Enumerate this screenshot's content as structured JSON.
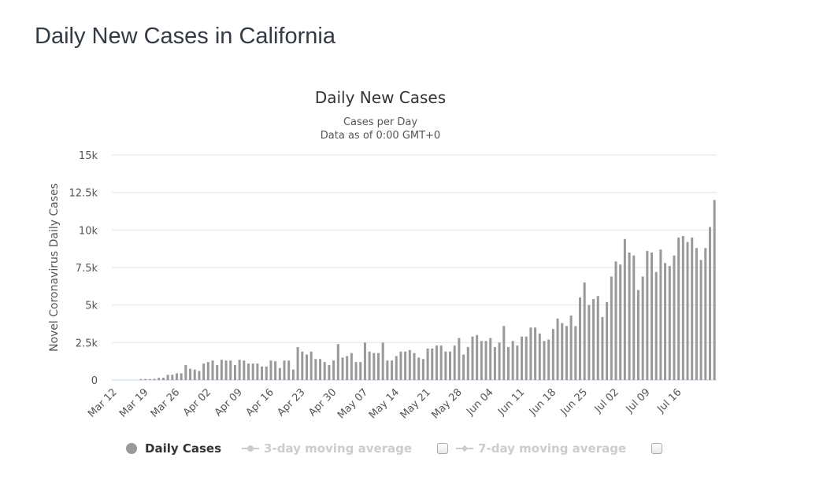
{
  "page": {
    "title": "Daily New Cases in California"
  },
  "chart_data": {
    "type": "bar",
    "title": "Daily New Cases",
    "subtitle_lines": [
      "Cases per Day",
      "Data as of 0:00 GMT+0"
    ],
    "xlabel": "",
    "ylabel": "Novel Coronavirus Daily Cases",
    "ylim": [
      0,
      15000
    ],
    "yticks": [
      0,
      2500,
      5000,
      7500,
      10000,
      12500,
      15000
    ],
    "ytick_labels": [
      "0",
      "2.5k",
      "5k",
      "7.5k",
      "10k",
      "12.5k",
      "15k"
    ],
    "xtick_labels": [
      "Mar 12",
      "Mar 19",
      "Mar 26",
      "Apr 02",
      "Apr 09",
      "Apr 16",
      "Apr 23",
      "Apr 30",
      "May 07",
      "May 14",
      "May 21",
      "May 28",
      "Jun 04",
      "Jun 11",
      "Jun 18",
      "Jun 25",
      "Jul 02",
      "Jul 09",
      "Jul 16"
    ],
    "xtick_every_days": 7,
    "start_date": "Mar 12",
    "grid": true,
    "bar_color": "#999999",
    "series": [
      {
        "name": "Daily Cases",
        "values": [
          0,
          0,
          0,
          0,
          0,
          0,
          60,
          70,
          60,
          80,
          150,
          160,
          350,
          350,
          450,
          450,
          1000,
          750,
          700,
          600,
          1100,
          1200,
          1300,
          1000,
          1350,
          1300,
          1300,
          1000,
          1350,
          1300,
          1100,
          1100,
          1100,
          900,
          900,
          1300,
          1250,
          800,
          1300,
          1300,
          700,
          2200,
          1900,
          1700,
          1900,
          1400,
          1400,
          1200,
          1000,
          1300,
          2400,
          1500,
          1600,
          1800,
          1200,
          1200,
          2500,
          1900,
          1800,
          1800,
          2500,
          1300,
          1300,
          1600,
          1900,
          1900,
          2000,
          1800,
          1500,
          1400,
          2100,
          2100,
          2300,
          2300,
          1900,
          1900,
          2300,
          2800,
          1700,
          2200,
          2900,
          3000,
          2600,
          2600,
          2800,
          2200,
          2500,
          3600,
          2200,
          2600,
          2300,
          2900,
          2900,
          3500,
          3500,
          3100,
          2600,
          2700,
          3400,
          4100,
          3800,
          3600,
          4300,
          3600,
          5500,
          6500,
          5000,
          5400,
          5600,
          4200,
          5200,
          6900,
          7900,
          7700,
          9400,
          8500,
          8300,
          6000,
          6900,
          8600,
          8500,
          7200,
          8700,
          7800,
          7600,
          8300,
          9500,
          9600,
          9200,
          9500,
          8800,
          8000,
          8800,
          10200,
          12000
        ]
      }
    ],
    "legend": {
      "placement": "bottom",
      "items": [
        {
          "label": "Daily Cases",
          "active": true
        },
        {
          "label": "3-day moving average",
          "active": false
        },
        {
          "label": "7-day moving average",
          "active": false
        }
      ]
    }
  }
}
